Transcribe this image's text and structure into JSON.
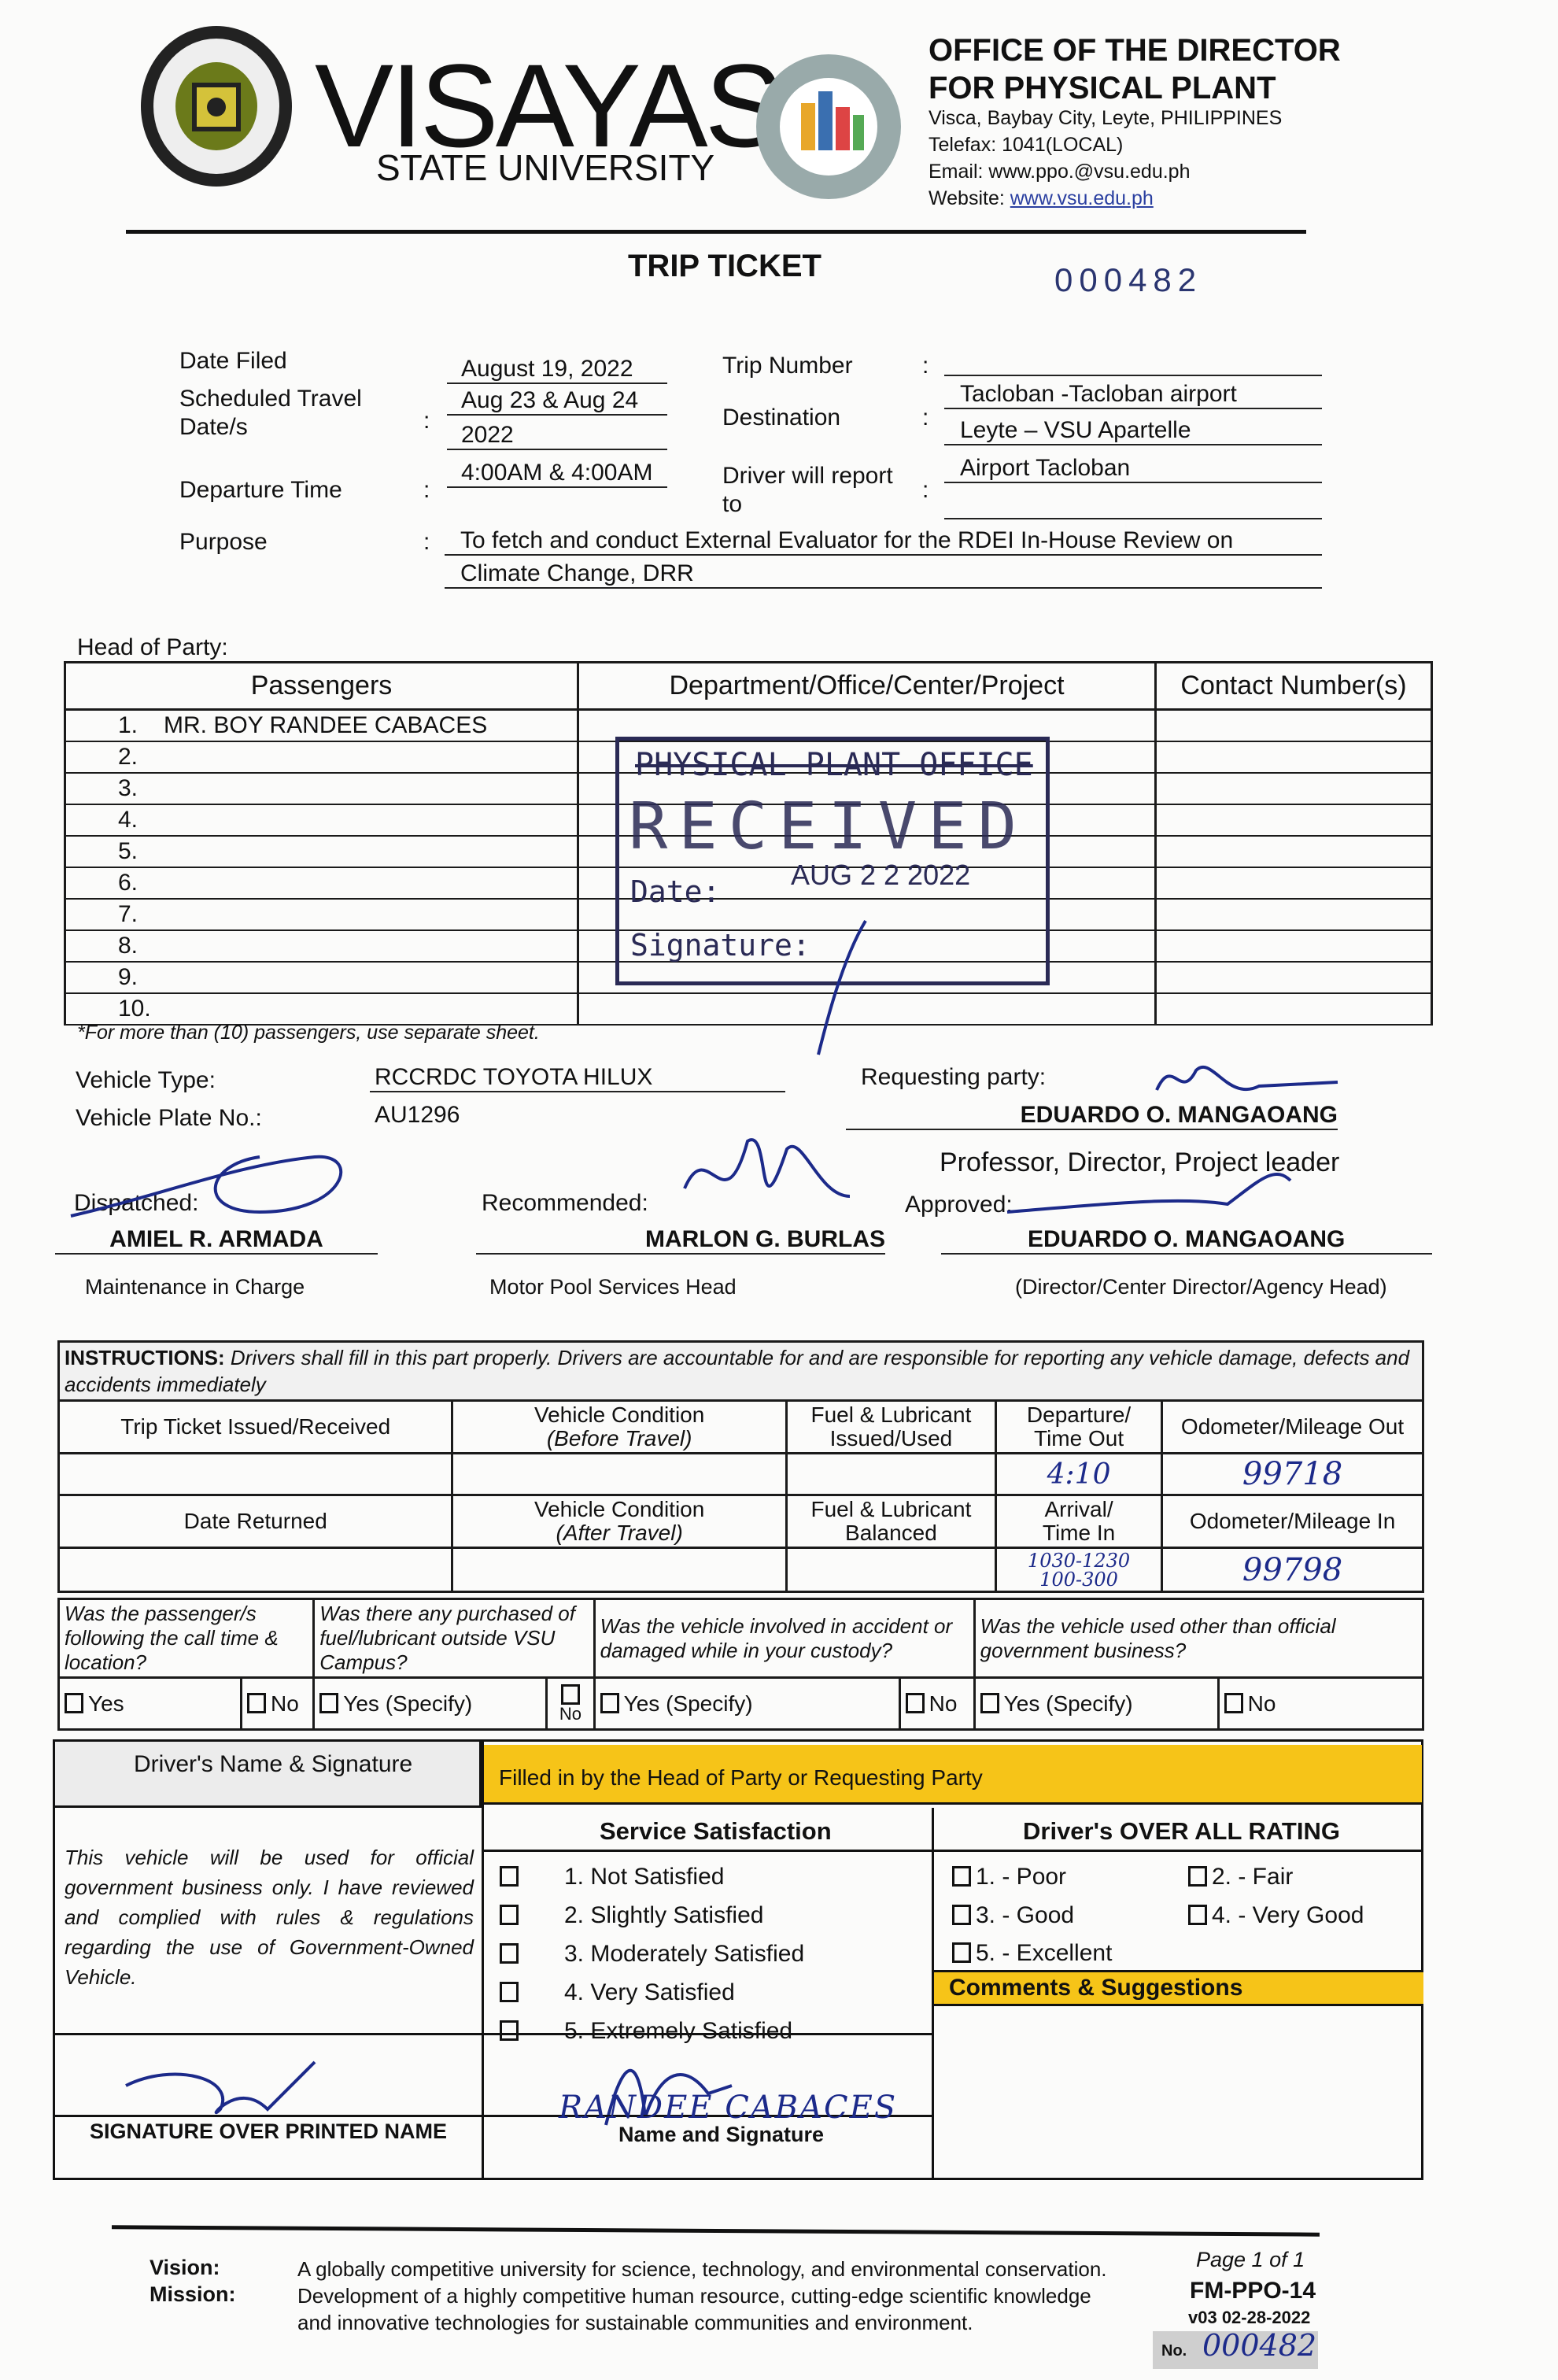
{
  "header": {
    "university_name": "VISAYAS",
    "university_sub": "STATE UNIVERSITY",
    "seal_text": "VISAYAS STATE UNIVERSITY",
    "ppo_logo_text": "PHYSICAL PLANT",
    "office_line1": "OFFICE OF THE DIRECTOR",
    "office_line2": "FOR PHYSICAL PLANT",
    "address": "Visca, Baybay City, Leyte, PHILIPPINES",
    "telefax": "Telefax: 1041(LOCAL)",
    "email": "Email: www.ppo.@vsu.edu.ph",
    "website_label": "Website: ",
    "website": "www.vsu.edu.ph"
  },
  "title": "TRIP TICKET",
  "ticket_number": "000482",
  "fields": {
    "date_filed_label": "Date Filed",
    "date_filed": "August 19, 2022",
    "sched_label1": "Scheduled Travel",
    "sched_label2": "Date/s",
    "sched_value1": "Aug 23 & Aug 24",
    "sched_value2": "2022",
    "departure_label": "Departure Time",
    "departure": "4:00AM & 4:00AM",
    "purpose_label": "Purpose",
    "purpose1": "To fetch and conduct External Evaluator for the RDEI In-House Review on",
    "purpose2": "Climate Change, DRR",
    "trip_number_label": "Trip Number",
    "trip_number": "",
    "destination_label": "Destination",
    "destination1": "Tacloban -Tacloban airport",
    "destination2": "Leyte – VSU Apartelle",
    "report_label1": "Driver will report",
    "report_label2": "to",
    "report_to": "Airport Tacloban",
    "colon": ":"
  },
  "head_of_party_label": "Head of Party:",
  "passengers": {
    "headers": [
      "Passengers",
      "Department/Office/Center/Project",
      "Contact Number(s)"
    ],
    "rows": [
      {
        "n": "1.",
        "name": "MR. BOY RANDEE CABACES"
      },
      {
        "n": "2.",
        "name": ""
      },
      {
        "n": "3.",
        "name": ""
      },
      {
        "n": "4.",
        "name": ""
      },
      {
        "n": "5.",
        "name": ""
      },
      {
        "n": "6.",
        "name": ""
      },
      {
        "n": "7.",
        "name": ""
      },
      {
        "n": "8.",
        "name": ""
      },
      {
        "n": "9.",
        "name": ""
      },
      {
        "n": "10.",
        "name": ""
      }
    ],
    "note": "*For more than (10) passengers, use separate sheet."
  },
  "stamp": {
    "office": "PHYSICAL PLANT OFFICE",
    "received": "RECEIVED",
    "date_label": "Date:",
    "date": "AUG 2 2 2022",
    "signature_label": "Signature:"
  },
  "vehicle": {
    "type_label": "Vehicle Type:",
    "type": "RCCRDC TOYOTA HILUX",
    "plate_label": "Vehicle Plate No.:",
    "plate": "AU1296"
  },
  "requesting": {
    "label": "Requesting party:",
    "name": "EDUARDO O. MANGAOANG",
    "title": "Professor, Director, Project leader"
  },
  "dispatched": {
    "label": "Dispatched:",
    "name": "AMIEL R. ARMADA",
    "role": "Maintenance in Charge"
  },
  "recommended": {
    "label": "Recommended:",
    "name": "MARLON G. BURLAS",
    "role": "Motor Pool Services Head"
  },
  "approved": {
    "label": "Approved:",
    "name": "EDUARDO O. MANGAOANG",
    "role": "(Director/Center Director/Agency Head)"
  },
  "instructions": {
    "bold": "INSTRUCTIONS:",
    "text": " Drivers shall fill in this part properly.  Drivers are accountable for and are responsible for reporting any vehicle damage, defects and accidents immediately",
    "h1": [
      "Trip Ticket Issued/Received",
      "Vehicle Condition",
      "(Before Travel)",
      "Fuel & Lubricant",
      "Issued/Used",
      "Departure/",
      "Time Out",
      "Odometer/Mileage Out"
    ],
    "v1": {
      "time_out": "4:10",
      "odo_out": "99718"
    },
    "h2": [
      "Date Returned",
      "Vehicle Condition",
      "(After Travel)",
      "Fuel & Lubricant",
      "Balanced",
      "Arrival/",
      "Time In",
      "Odometer/Mileage In"
    ],
    "v2": {
      "time_in1": "1030-1230",
      "time_in2": "100-300",
      "odo_in": "99798"
    },
    "questions": [
      "Was the passenger/s following the call time & location?",
      "Was there any purchased of fuel/lubricant outside VSU Campus?",
      "Was the vehicle involved in accident or damaged while in your custody?",
      "Was the vehicle used other than official government business?"
    ],
    "yes": "Yes",
    "yes_specify": "Yes (Specify)",
    "no": "No"
  },
  "rating": {
    "driver_label": "Driver's Name & Signature",
    "filled_by": "Filled in by the Head of Party or Requesting Party",
    "certify": "This vehicle will be used for official government business only. I have reviewed and complied with rules & regulations regarding the use of Government-Owned Vehicle.",
    "service_title": "Service Satisfaction",
    "service_items": [
      "1.  Not Satisfied",
      "2.  Slightly Satisfied",
      "3.  Moderately Satisfied",
      "4.  Very Satisfied",
      "5.  Extremely Satisfied"
    ],
    "driver_title": "Driver's OVER ALL RATING",
    "driver_items": [
      "1. - Poor",
      "2. - Fair",
      "3. - Good",
      "4. - Very Good",
      "5. - Excellent"
    ],
    "comments": "Comments & Suggestions",
    "sig_caption": "SIGNATURE OVER PRINTED NAME",
    "name_sig_caption": "Name and Signature",
    "passenger_hand_name": "RANDEE CABACES"
  },
  "footer": {
    "vision_label": "Vision:",
    "mission_label": "Mission:",
    "vision": "A globally competitive university for science, technology, and environmental conservation.",
    "mission1": "Development of a highly competitive human resource, cutting-edge scientific knowledge",
    "mission2": "and innovative technologies for sustainable communities and environment.",
    "page": "Page 1 of 1",
    "form": "FM-PPO-14",
    "version": "v03 02-28-2022",
    "no_label": "No.",
    "no_value": "000482"
  },
  "colors": {
    "ink": "#1c2a8a",
    "highlight": "#f6c418",
    "stamp": "#2a2a55"
  }
}
